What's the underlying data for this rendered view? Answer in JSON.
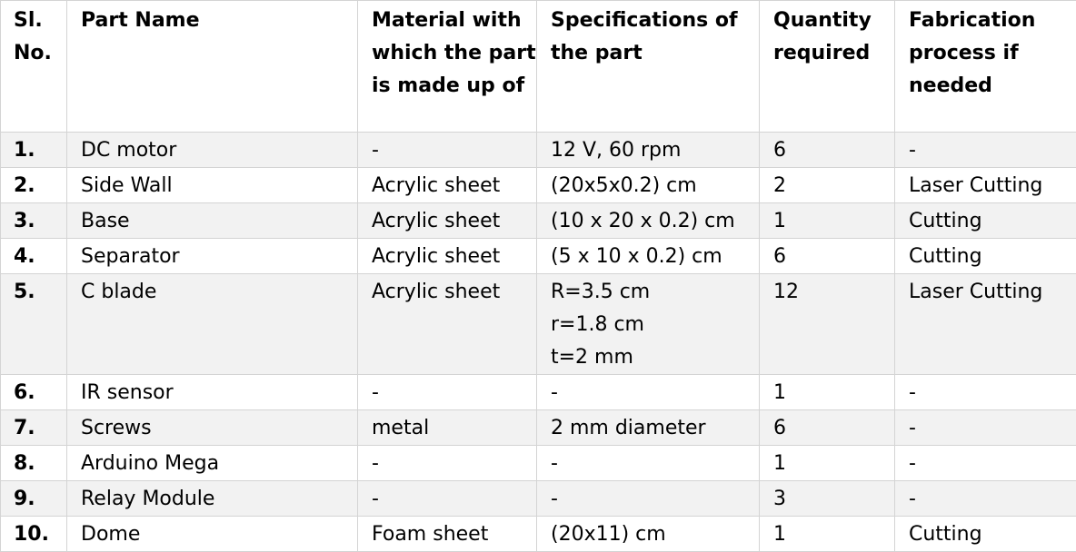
{
  "table": {
    "headers": [
      "Sl. No.",
      "Part Name",
      "Material with which the part is made up of",
      "Specifications of the part",
      "Quantity required",
      "Fabrication process if needed"
    ],
    "rows": [
      {
        "sl_no": "1.",
        "part_name": "DC motor",
        "material": "-",
        "specifications": [
          "12 V, 60 rpm"
        ],
        "quantity": "6",
        "fabrication": "-"
      },
      {
        "sl_no": "2.",
        "part_name": "Side Wall",
        "material": "Acrylic sheet",
        "specifications": [
          "(20x5x0.2) cm"
        ],
        "quantity": "2",
        "fabrication": "Laser Cutting"
      },
      {
        "sl_no": "3.",
        "part_name": "Base",
        "material": "Acrylic sheet",
        "specifications": [
          "(10 x 20 x 0.2) cm"
        ],
        "quantity": "1",
        "fabrication": "Cutting"
      },
      {
        "sl_no": "4.",
        "part_name": "Separator",
        "material": "Acrylic sheet",
        "specifications": [
          "(5 x 10 x 0.2) cm"
        ],
        "quantity": "6",
        "fabrication": "Cutting"
      },
      {
        "sl_no": "5.",
        "part_name": "C blade",
        "material": "Acrylic sheet",
        "specifications": [
          "R=3.5 cm",
          "r=1.8 cm",
          "t=2 mm"
        ],
        "quantity": "12",
        "fabrication": "Laser Cutting"
      },
      {
        "sl_no": "6.",
        "part_name": "IR sensor",
        "material": "-",
        "specifications": [
          "-"
        ],
        "quantity": "1",
        "fabrication": "-"
      },
      {
        "sl_no": "7.",
        "part_name": "Screws",
        "material": "metal",
        "specifications": [
          "2 mm diameter"
        ],
        "quantity": "6",
        "fabrication": "-"
      },
      {
        "sl_no": "8.",
        "part_name": "Arduino Mega",
        "material": "-",
        "specifications": [
          "-"
        ],
        "quantity": "1",
        "fabrication": "-"
      },
      {
        "sl_no": "9.",
        "part_name": "Relay Module",
        "material": "-",
        "specifications": [
          "-"
        ],
        "quantity": "3",
        "fabrication": "-"
      },
      {
        "sl_no": "10.",
        "part_name": "Dome",
        "material": "Foam sheet",
        "specifications": [
          "(20x11) cm"
        ],
        "quantity": "1",
        "fabrication": "Cutting"
      }
    ]
  }
}
